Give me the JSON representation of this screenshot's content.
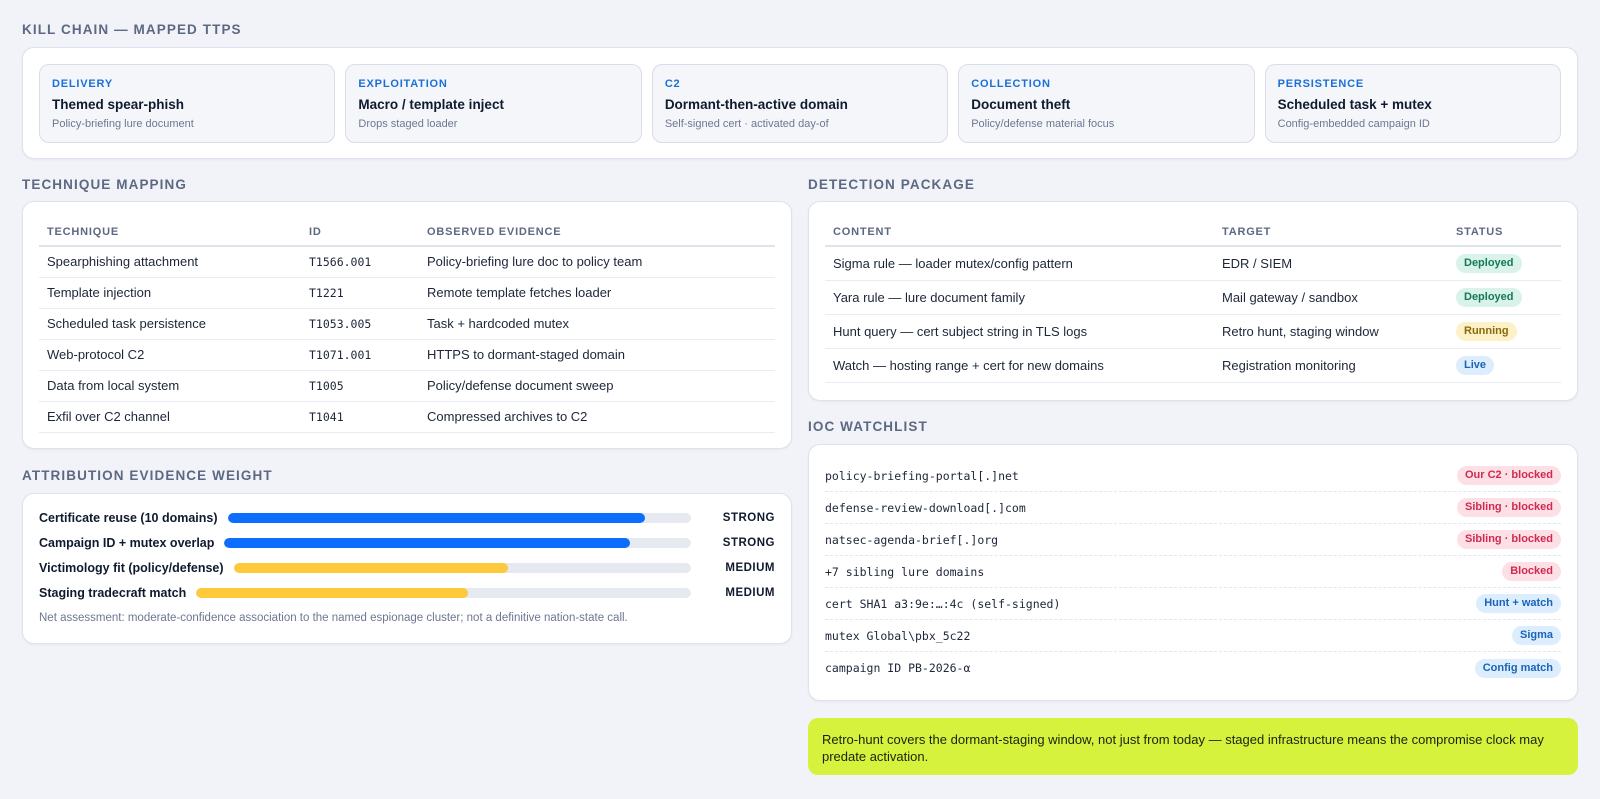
{
  "kill_chain": {
    "title": "KILL CHAIN — MAPPED TTPS",
    "stages": [
      {
        "label": "DELIVERY",
        "title": "Themed spear-phish",
        "sub": "Policy-briefing lure document"
      },
      {
        "label": "EXPLOITATION",
        "title": "Macro / template inject",
        "sub": "Drops staged loader"
      },
      {
        "label": "C2",
        "title": "Dormant-then-active domain",
        "sub": "Self-signed cert · activated day-of"
      },
      {
        "label": "COLLECTION",
        "title": "Document theft",
        "sub": "Policy/defense material focus"
      },
      {
        "label": "PERSISTENCE",
        "title": "Scheduled task + mutex",
        "sub": "Config-embedded campaign ID"
      }
    ]
  },
  "technique_mapping": {
    "title": "TECHNIQUE MAPPING",
    "headers": [
      "TECHNIQUE",
      "ID",
      "OBSERVED EVIDENCE"
    ],
    "rows": [
      {
        "technique": "Spearphishing attachment",
        "id": "T1566.001",
        "evidence": "Policy-briefing lure doc to policy team"
      },
      {
        "technique": "Template injection",
        "id": "T1221",
        "evidence": "Remote template fetches loader"
      },
      {
        "technique": "Scheduled task persistence",
        "id": "T1053.005",
        "evidence": "Task + hardcoded mutex"
      },
      {
        "technique": "Web-protocol C2",
        "id": "T1071.001",
        "evidence": "HTTPS to dormant-staged domain"
      },
      {
        "technique": "Data from local system",
        "id": "T1005",
        "evidence": "Policy/defense document sweep"
      },
      {
        "technique": "Exfil over C2 channel",
        "id": "T1041",
        "evidence": "Compressed archives to C2"
      }
    ]
  },
  "attribution": {
    "title": "ATTRIBUTION EVIDENCE WEIGHT",
    "items": [
      {
        "label": "Certificate reuse (10 domains)",
        "weight": "STRONG",
        "fill": 0.9,
        "color": "#0d6efd"
      },
      {
        "label": "Campaign ID + mutex overlap",
        "weight": "STRONG",
        "fill": 0.87,
        "color": "#0d6efd"
      },
      {
        "label": "Victimology fit (policy/defense)",
        "weight": "MEDIUM",
        "fill": 0.6,
        "color": "#ffc93c"
      },
      {
        "label": "Staging tradecraft match",
        "weight": "MEDIUM",
        "fill": 0.55,
        "color": "#ffc93c"
      }
    ],
    "note": "Net assessment: moderate-confidence association to the named espionage cluster; not a definitive nation-state call."
  },
  "detection_package": {
    "title": "DETECTION PACKAGE",
    "headers": [
      "CONTENT",
      "TARGET",
      "STATUS"
    ],
    "rows": [
      {
        "content": "Sigma rule — loader mutex/config pattern",
        "target": "EDR / SIEM",
        "status": "Deployed",
        "kind": "deployed"
      },
      {
        "content": "Yara rule — lure document family",
        "target": "Mail gateway / sandbox",
        "status": "Deployed",
        "kind": "deployed"
      },
      {
        "content": "Hunt query — cert subject string in TLS logs",
        "target": "Retro hunt, staging window",
        "status": "Running",
        "kind": "running"
      },
      {
        "content": "Watch — hosting range + cert for new domains",
        "target": "Registration monitoring",
        "status": "Live",
        "kind": "live"
      }
    ]
  },
  "ioc_watchlist": {
    "title": "IOC WATCHLIST",
    "items": [
      {
        "value": "policy-briefing-portal[.]net",
        "tag": "Our C2 · blocked",
        "kind": "red"
      },
      {
        "value": "defense-review-download[.]com",
        "tag": "Sibling · blocked",
        "kind": "red"
      },
      {
        "value": "natsec-agenda-brief[.]org",
        "tag": "Sibling · blocked",
        "kind": "red"
      },
      {
        "value": "+7 sibling lure domains",
        "tag": "Blocked",
        "kind": "red"
      },
      {
        "value": "cert SHA1 a3:9e:…:4c (self-signed)",
        "tag": "Hunt + watch",
        "kind": "blue"
      },
      {
        "value": "mutex Global\\pbx_5c22",
        "tag": "Sigma",
        "kind": "blue"
      },
      {
        "value": "campaign ID PB-2026-α",
        "tag": "Config match",
        "kind": "blue"
      }
    ]
  },
  "callout": {
    "text": "Retro-hunt covers the dormant-staging window, not just from today — staged infrastructure means the compromise clock may predate activation."
  }
}
